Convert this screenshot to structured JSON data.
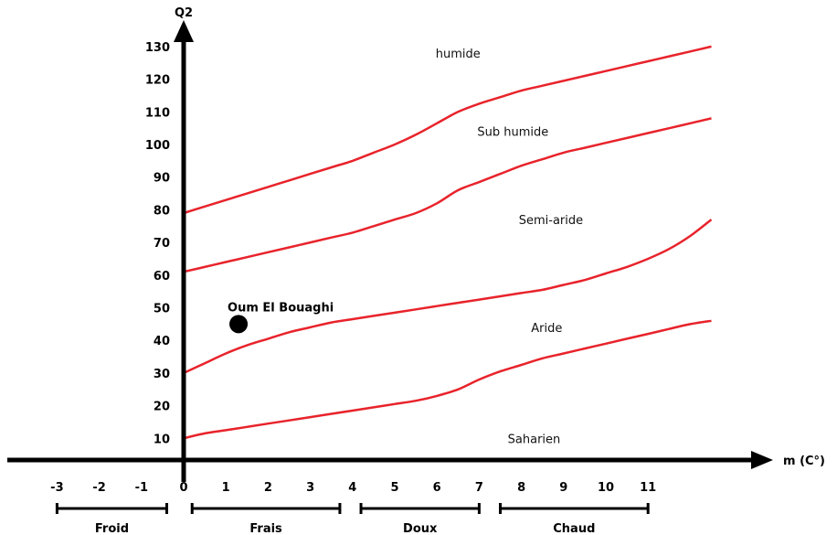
{
  "chart_data": {
    "type": "line",
    "title": "",
    "xlabel": "m (C°)",
    "ylabel": "Q2",
    "xlim": [
      -3,
      12.5
    ],
    "ylim": [
      0,
      135
    ],
    "x_ticks": [
      -3,
      -2,
      -1,
      0,
      1,
      2,
      3,
      4,
      5,
      6,
      7,
      8,
      9,
      10,
      11
    ],
    "y_ticks": [
      10,
      20,
      30,
      40,
      50,
      60,
      70,
      80,
      90,
      100,
      110,
      120,
      130
    ],
    "grid": false,
    "series": [
      {
        "name": "",
        "x": [
          0,
          0.5,
          1,
          1.5,
          2,
          2.5,
          3,
          3.5,
          4,
          4.5,
          5,
          5.5,
          6,
          6.5,
          7,
          7.5,
          8,
          8.5,
          9,
          9.5,
          10,
          10.5,
          11,
          11.5,
          12,
          12.5
        ],
        "values": [
          79,
          81,
          83,
          85,
          87,
          89,
          91,
          93,
          95,
          97.5,
          100,
          103,
          106.5,
          110,
          112.5,
          114.5,
          116.5,
          118,
          119.5,
          121,
          122.5,
          124,
          125.5,
          127,
          128.5,
          130
        ]
      },
      {
        "name": "",
        "x": [
          0,
          0.5,
          1,
          1.5,
          2,
          2.5,
          3,
          3.5,
          4,
          4.5,
          5,
          5.5,
          6,
          6.5,
          7,
          7.5,
          8,
          8.5,
          9,
          9.5,
          10,
          10.5,
          11,
          11.5,
          12,
          12.5
        ],
        "values": [
          61,
          62.5,
          64,
          65.5,
          67,
          68.5,
          70,
          71.5,
          73,
          75,
          77,
          79,
          82,
          86,
          88.5,
          91,
          93.5,
          95.5,
          97.5,
          99,
          100.5,
          102,
          103.5,
          105,
          106.5,
          108
        ]
      },
      {
        "name": "",
        "x": [
          0,
          0.5,
          1,
          1.5,
          2,
          2.5,
          3,
          3.5,
          4,
          4.5,
          5,
          5.5,
          6,
          6.5,
          7,
          7.5,
          8,
          8.5,
          9,
          9.5,
          10,
          10.5,
          11,
          11.5,
          12,
          12.5
        ],
        "values": [
          30,
          33,
          36,
          38.5,
          40.5,
          42.5,
          44,
          45.5,
          46.5,
          47.5,
          48.5,
          49.5,
          50.5,
          51.5,
          52.5,
          53.5,
          54.5,
          55.5,
          57,
          58.5,
          60.5,
          62.5,
          65,
          68,
          72,
          77
        ]
      },
      {
        "name": "",
        "x": [
          0,
          0.5,
          1,
          1.5,
          2,
          2.5,
          3,
          3.5,
          4,
          4.5,
          5,
          5.5,
          6,
          6.5,
          7,
          7.5,
          8,
          8.5,
          9,
          9.5,
          10,
          10.5,
          11,
          11.5,
          12,
          12.5
        ],
        "values": [
          10,
          11.5,
          12.5,
          13.5,
          14.5,
          15.5,
          16.5,
          17.5,
          18.5,
          19.5,
          20.5,
          21.5,
          23,
          25,
          28,
          30.5,
          32.5,
          34.5,
          36,
          37.5,
          39,
          40.5,
          42,
          43.5,
          45,
          46
        ]
      }
    ],
    "zone_labels": [
      {
        "text": "humide",
        "x": 6.5,
        "y": 128
      },
      {
        "text": "Sub humide",
        "x": 7.8,
        "y": 104
      },
      {
        "text": "Semi-aride",
        "x": 8.7,
        "y": 77
      },
      {
        "text": "Aride",
        "x": 8.6,
        "y": 44
      },
      {
        "text": "Saharien",
        "x": 8.3,
        "y": 10
      }
    ],
    "points": [
      {
        "label": "Oum El Bouaghi",
        "x": 1.3,
        "y": 45
      }
    ],
    "temperature_bands": [
      {
        "label": "Froid",
        "x_start": -3,
        "x_end": -0.4
      },
      {
        "label": "Frais",
        "x_start": 0.2,
        "x_end": 3.7
      },
      {
        "label": "Doux",
        "x_start": 4.2,
        "x_end": 7
      },
      {
        "label": "Chaud",
        "x_start": 7.5,
        "x_end": 11
      }
    ],
    "colors": {
      "curve": "#e8232b",
      "axis": "#000000",
      "point": "#000000"
    }
  }
}
